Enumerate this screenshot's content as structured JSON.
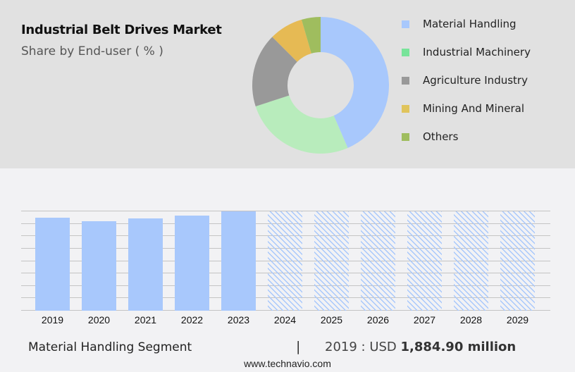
{
  "header": {
    "title": "Industrial Belt Drives Market",
    "subtitle": "Share by End-user ( % )"
  },
  "legend": [
    {
      "label": "Material Handling",
      "color": "#a8c8fc"
    },
    {
      "label": "Industrial Machinery",
      "color": "#78e49a"
    },
    {
      "label": "Agriculture Industry",
      "color": "#999999"
    },
    {
      "label": "Mining And Mineral",
      "color": "#e0c45c"
    },
    {
      "label": "Others",
      "color": "#9fbd5e"
    }
  ],
  "footer": {
    "segment": "Material Handling Segment",
    "separator": "|",
    "value_prefix": "2019 : USD",
    "value_bold": "1,884.90 million",
    "site": "www.technavio.com"
  },
  "chart_data": [
    {
      "type": "pie",
      "title": "Industrial Belt Drives Market",
      "subtitle": "Share by End-user ( % )",
      "categories": [
        "Material Handling",
        "Industrial Machinery",
        "Agriculture Industry",
        "Mining And Mineral",
        "Others"
      ],
      "values": [
        43.5,
        26.5,
        17.5,
        8.0,
        4.5
      ],
      "colors": [
        "#a8c8fc",
        "#b8ecbc",
        "#999999",
        "#e6ba54",
        "#9fbd5e"
      ],
      "donut": true,
      "legend_position": "right"
    },
    {
      "type": "bar",
      "title": "Material Handling Segment",
      "categories": [
        "2019",
        "2020",
        "2021",
        "2022",
        "2023",
        "2024",
        "2025",
        "2026",
        "2027",
        "2028",
        "2029"
      ],
      "series": [
        {
          "name": "Historical",
          "values": [
            1884.9,
            1817,
            1870,
            1937,
            2020,
            null,
            null,
            null,
            null,
            null,
            null
          ]
        },
        {
          "name": "Forecast (hatched, values not shown)",
          "values": [
            null,
            null,
            null,
            null,
            null,
            2020,
            2020,
            2020,
            2020,
            2020,
            2020
          ]
        }
      ],
      "annotation": "2019 : USD 1,884.90 million",
      "xlabel": "",
      "ylabel": "",
      "grid": true,
      "y_axis_labels_shown": false
    }
  ]
}
